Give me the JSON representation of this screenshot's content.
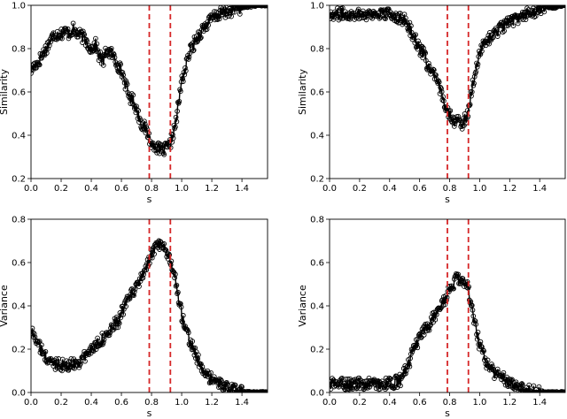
{
  "chart_data": [
    {
      "type": "line",
      "xlabel": "s",
      "ylabel": "Similarity",
      "xlim": [
        0.0,
        1.57
      ],
      "ylim": [
        0.2,
        1.0
      ],
      "xticks": [
        "0.0",
        "0.2",
        "0.4",
        "0.6",
        "0.8",
        "1.0",
        "1.2",
        "1.4"
      ],
      "yticks": [
        "0.2",
        "0.4",
        "0.6",
        "0.8",
        "1.0"
      ],
      "vlines": [
        0.785,
        0.925
      ],
      "series": [
        {
          "marker": "open-circle",
          "x": [
            0.0,
            0.02,
            0.05,
            0.08,
            0.1,
            0.13,
            0.15,
            0.18,
            0.2,
            0.23,
            0.25,
            0.28,
            0.3,
            0.33,
            0.35,
            0.38,
            0.4,
            0.43,
            0.45,
            0.48,
            0.5,
            0.53,
            0.55,
            0.58,
            0.6,
            0.63,
            0.65,
            0.68,
            0.7,
            0.73,
            0.75,
            0.78,
            0.8,
            0.82,
            0.84,
            0.86,
            0.88,
            0.9,
            0.92,
            0.94,
            0.96,
            0.98,
            1.0,
            1.03,
            1.05,
            1.08,
            1.1,
            1.13,
            1.15,
            1.18,
            1.2,
            1.25,
            1.3,
            1.35,
            1.4,
            1.45,
            1.5,
            1.55
          ],
          "y": [
            0.7,
            0.72,
            0.74,
            0.78,
            0.8,
            0.84,
            0.86,
            0.87,
            0.87,
            0.88,
            0.87,
            0.89,
            0.87,
            0.86,
            0.85,
            0.82,
            0.8,
            0.82,
            0.77,
            0.74,
            0.79,
            0.78,
            0.76,
            0.72,
            0.7,
            0.63,
            0.58,
            0.56,
            0.52,
            0.46,
            0.44,
            0.4,
            0.35,
            0.36,
            0.34,
            0.33,
            0.33,
            0.34,
            0.35,
            0.4,
            0.45,
            0.55,
            0.65,
            0.72,
            0.78,
            0.82,
            0.85,
            0.88,
            0.9,
            0.92,
            0.94,
            0.96,
            0.97,
            0.98,
            0.99,
            0.995,
            1.0,
            1.0
          ]
        }
      ]
    },
    {
      "type": "line",
      "xlabel": "s",
      "ylabel": "Similarity",
      "xlim": [
        0.0,
        1.57
      ],
      "ylim": [
        0.2,
        1.0
      ],
      "xticks": [
        "0.0",
        "0.2",
        "0.4",
        "0.6",
        "0.8",
        "1.0",
        "1.2",
        "1.4"
      ],
      "yticks": [
        "0.2",
        "0.4",
        "0.6",
        "0.8",
        "1.0"
      ],
      "vlines": [
        0.785,
        0.925
      ],
      "series": [
        {
          "marker": "open-circle",
          "x": [
            0.0,
            0.05,
            0.1,
            0.15,
            0.2,
            0.25,
            0.3,
            0.35,
            0.4,
            0.45,
            0.5,
            0.53,
            0.55,
            0.58,
            0.6,
            0.63,
            0.65,
            0.68,
            0.7,
            0.73,
            0.75,
            0.78,
            0.8,
            0.82,
            0.84,
            0.86,
            0.88,
            0.9,
            0.92,
            0.94,
            0.96,
            0.98,
            1.0,
            1.05,
            1.1,
            1.15,
            1.2,
            1.25,
            1.3,
            1.35,
            1.4,
            1.45,
            1.5,
            1.55
          ],
          "y": [
            0.96,
            0.96,
            0.96,
            0.96,
            0.96,
            0.96,
            0.96,
            0.96,
            0.96,
            0.95,
            0.93,
            0.9,
            0.87,
            0.83,
            0.8,
            0.77,
            0.73,
            0.69,
            0.67,
            0.62,
            0.58,
            0.53,
            0.5,
            0.48,
            0.46,
            0.46,
            0.45,
            0.47,
            0.5,
            0.58,
            0.66,
            0.72,
            0.78,
            0.84,
            0.87,
            0.9,
            0.92,
            0.94,
            0.96,
            0.97,
            0.98,
            0.99,
            0.99,
            1.0
          ]
        }
      ]
    },
    {
      "type": "line",
      "xlabel": "s",
      "ylabel": "Variance",
      "xlim": [
        0.0,
        1.57
      ],
      "ylim": [
        0.0,
        0.8
      ],
      "xticks": [
        "0.0",
        "0.2",
        "0.4",
        "0.6",
        "0.8",
        "1.0",
        "1.2",
        "1.4"
      ],
      "yticks": [
        "0.0",
        "0.2",
        "0.4",
        "0.6",
        "0.8"
      ],
      "vlines": [
        0.785,
        0.925
      ],
      "series": [
        {
          "marker": "open-circle",
          "x": [
            0.0,
            0.02,
            0.05,
            0.08,
            0.1,
            0.13,
            0.15,
            0.18,
            0.2,
            0.23,
            0.25,
            0.28,
            0.3,
            0.33,
            0.35,
            0.38,
            0.4,
            0.43,
            0.45,
            0.48,
            0.5,
            0.53,
            0.55,
            0.58,
            0.6,
            0.63,
            0.65,
            0.68,
            0.7,
            0.73,
            0.75,
            0.78,
            0.8,
            0.82,
            0.84,
            0.86,
            0.88,
            0.9,
            0.92,
            0.94,
            0.96,
            0.98,
            1.0,
            1.03,
            1.05,
            1.08,
            1.1,
            1.13,
            1.15,
            1.2,
            1.25,
            1.3,
            1.35,
            1.4,
            1.45,
            1.5,
            1.55
          ],
          "y": [
            0.28,
            0.27,
            0.22,
            0.18,
            0.16,
            0.14,
            0.13,
            0.14,
            0.13,
            0.12,
            0.12,
            0.14,
            0.13,
            0.15,
            0.16,
            0.18,
            0.2,
            0.22,
            0.24,
            0.25,
            0.27,
            0.28,
            0.31,
            0.33,
            0.37,
            0.4,
            0.44,
            0.47,
            0.48,
            0.53,
            0.56,
            0.6,
            0.64,
            0.66,
            0.68,
            0.67,
            0.66,
            0.65,
            0.62,
            0.58,
            0.52,
            0.44,
            0.36,
            0.3,
            0.25,
            0.2,
            0.16,
            0.12,
            0.09,
            0.06,
            0.04,
            0.02,
            0.01,
            0.005,
            0.0,
            0.0,
            0.0
          ]
        }
      ]
    },
    {
      "type": "line",
      "xlabel": "s",
      "ylabel": "Variance",
      "xlim": [
        0.0,
        1.57
      ],
      "ylim": [
        0.0,
        0.8
      ],
      "xticks": [
        "0.0",
        "0.2",
        "0.4",
        "0.6",
        "0.8",
        "1.0",
        "1.2",
        "1.4"
      ],
      "yticks": [
        "0.0",
        "0.2",
        "0.4",
        "0.6",
        "0.8"
      ],
      "vlines": [
        0.785,
        0.925
      ],
      "series": [
        {
          "marker": "open-circle",
          "x": [
            0.0,
            0.05,
            0.1,
            0.15,
            0.2,
            0.25,
            0.3,
            0.35,
            0.4,
            0.45,
            0.48,
            0.5,
            0.53,
            0.55,
            0.58,
            0.6,
            0.63,
            0.65,
            0.68,
            0.7,
            0.73,
            0.75,
            0.78,
            0.8,
            0.82,
            0.84,
            0.86,
            0.88,
            0.9,
            0.92,
            0.94,
            0.96,
            0.98,
            1.0,
            1.03,
            1.05,
            1.08,
            1.1,
            1.15,
            1.2,
            1.25,
            1.3,
            1.35,
            1.4,
            1.45,
            1.5,
            1.55
          ],
          "y": [
            0.04,
            0.04,
            0.04,
            0.04,
            0.04,
            0.04,
            0.04,
            0.04,
            0.04,
            0.05,
            0.06,
            0.1,
            0.14,
            0.18,
            0.22,
            0.25,
            0.28,
            0.3,
            0.33,
            0.36,
            0.38,
            0.41,
            0.44,
            0.48,
            0.5,
            0.52,
            0.52,
            0.5,
            0.52,
            0.5,
            0.42,
            0.34,
            0.28,
            0.22,
            0.17,
            0.13,
            0.11,
            0.09,
            0.07,
            0.05,
            0.03,
            0.02,
            0.01,
            0.005,
            0.0,
            0.0,
            0.0
          ]
        }
      ]
    }
  ]
}
